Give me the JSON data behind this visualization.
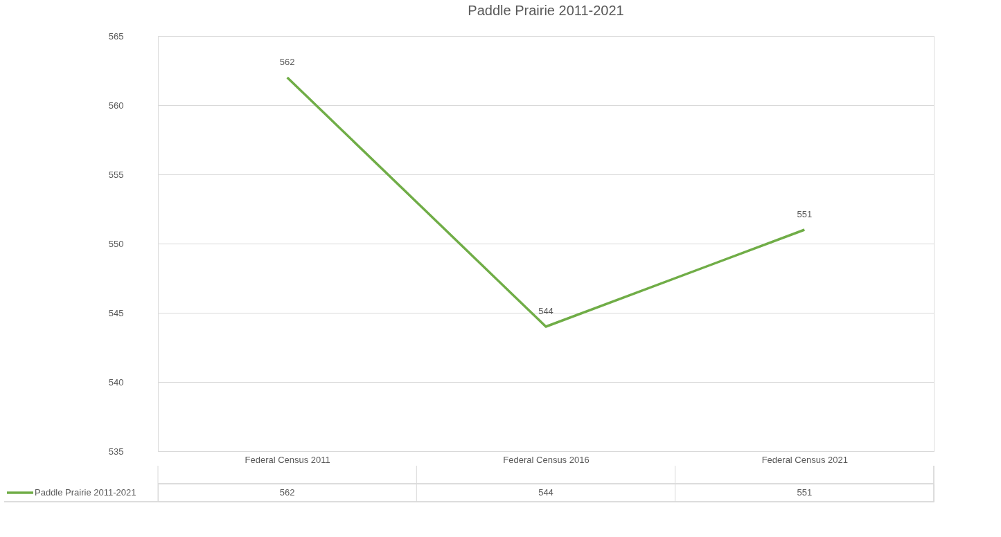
{
  "chart_data": {
    "type": "line",
    "title": "Paddle Prairie 2011-2021",
    "categories": [
      "Federal Census 2011",
      "Federal Census 2016",
      "Federal Census 2021"
    ],
    "series": [
      {
        "name": "Paddle Prairie 2011-2021",
        "color": "#70ad47",
        "values": [
          562,
          544,
          551
        ],
        "value_labels": [
          "562",
          "544",
          "551"
        ]
      }
    ],
    "ylim": [
      535,
      565
    ],
    "yticks": [
      535,
      540,
      545,
      550,
      555,
      560,
      565
    ],
    "grid": "y",
    "legend": "bottom",
    "marker": "none",
    "line_style": "solid"
  }
}
